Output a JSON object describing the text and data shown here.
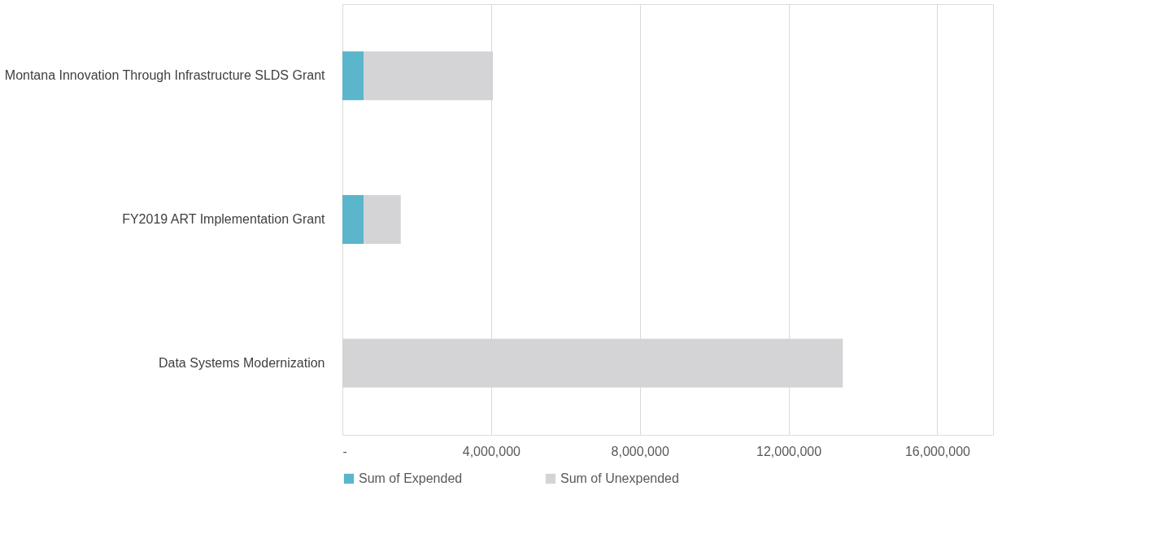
{
  "chart_data": {
    "type": "bar",
    "orientation": "horizontal",
    "stacked": true,
    "categories": [
      "Montana Innovation Through Infrastructure SLDS Grant",
      "FY2019 ART Implementation Grant",
      "Data Systems Modernization"
    ],
    "series": [
      {
        "name": "Sum of Expended",
        "color": "#5bb5cb",
        "values": [
          570000,
          570000,
          0
        ]
      },
      {
        "name": "Sum of Unexpended",
        "color": "#d4d4d6",
        "values": [
          3480000,
          1000000,
          13460000
        ]
      }
    ],
    "xlim": [
      0,
      17500000
    ],
    "xticks": [
      {
        "value": 0,
        "label": "-"
      },
      {
        "value": 4000000,
        "label": "4,000,000"
      },
      {
        "value": 8000000,
        "label": "8,000,000"
      },
      {
        "value": 12000000,
        "label": "12,000,000"
      },
      {
        "value": 16000000,
        "label": "16,000,000"
      }
    ],
    "grid": "x",
    "legend": "bottom"
  }
}
